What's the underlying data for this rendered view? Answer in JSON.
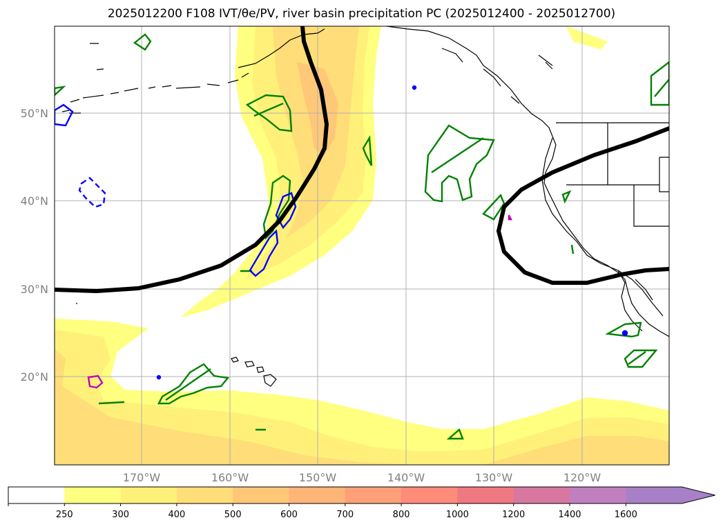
{
  "title": "2025012200 F108 IVT/θe/PV, river basin precipitation PC (2025012400 - 2025012700)",
  "map": {
    "lat_labels": [
      "50°N",
      "40°N",
      "30°N",
      "20°N"
    ],
    "lon_labels": [
      "170°W",
      "160°W",
      "150°W",
      "140°W",
      "130°W",
      "120°W"
    ],
    "fill_levels": [
      250,
      300,
      400,
      500,
      600,
      700
    ],
    "contour_colors": {
      "theta_e": "#000000",
      "pv_green": "#008000",
      "pv_blue": "#0000ff",
      "precip_magenta": "#c000c0"
    }
  },
  "colorbar": {
    "labels": [
      "250",
      "300",
      "400",
      "500",
      "600",
      "700",
      "800",
      "1000",
      "1200",
      "1400",
      "1600"
    ],
    "colors": [
      "#ffffff",
      "#ffff80",
      "#fff07a",
      "#ffdd78",
      "#ffc878",
      "#ffb478",
      "#ffa078",
      "#ff8c78",
      "#f07880",
      "#d878a0",
      "#c080c0",
      "#a880c8"
    ],
    "extend": "max"
  }
}
